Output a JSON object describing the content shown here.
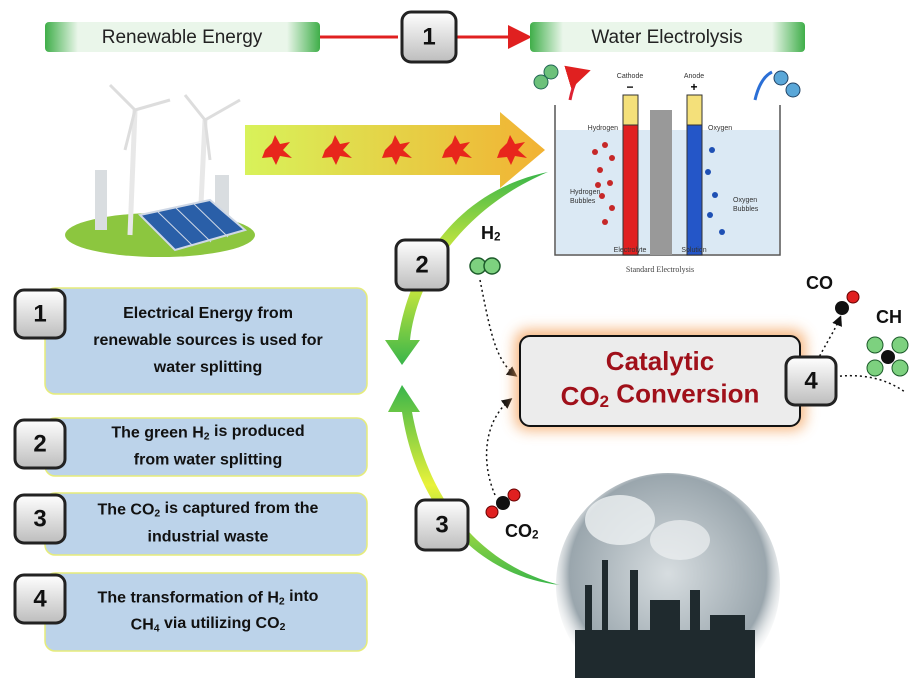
{
  "header": {
    "left": "Renewable Energy",
    "badge": "1",
    "right": "Water Electrolysis"
  },
  "electrolysis": {
    "cathode": "Cathode",
    "anode": "Anode",
    "minus": "−",
    "plus": "+",
    "hydrogen": "Hydrogen",
    "oxygen": "Oxygen",
    "hydrogen_bubbles": [
      "Hydrogen",
      "Bubbles"
    ],
    "oxygen_bubbles": [
      "Oxygen",
      "Bubbles"
    ],
    "electrolyte": "Electrolyte",
    "solution": "Solution",
    "caption": "Standard Electrolysis"
  },
  "badges": {
    "two": "2",
    "three": "3",
    "four": "4"
  },
  "molecules": {
    "h2": [
      "H",
      "2"
    ],
    "co2": [
      "CO",
      "2"
    ],
    "co": [
      "CO"
    ],
    "ch4": [
      "CH"
    ]
  },
  "center": {
    "line1": [
      [
        "Catalytic"
      ]
    ],
    "line2": [
      [
        "CO",
        "2",
        " Conversion"
      ]
    ]
  },
  "steps": [
    {
      "number": "1",
      "lines": [
        [
          "Electrical Energy from"
        ],
        [
          "renewable sources is used for"
        ],
        [
          "water splitting"
        ]
      ]
    },
    {
      "number": "2",
      "lines": [
        [
          "The green H",
          "2",
          " is produced"
        ],
        [
          "from water splitting"
        ]
      ]
    },
    {
      "number": "3",
      "lines": [
        [
          "The CO",
          "2",
          " is captured from the"
        ],
        [
          "industrial waste"
        ]
      ]
    },
    {
      "number": "4",
      "lines": [
        [
          "The transformation of H",
          "2",
          " into"
        ],
        [
          "CH",
          "4",
          " via utilizing CO",
          "2"
        ]
      ]
    }
  ]
}
